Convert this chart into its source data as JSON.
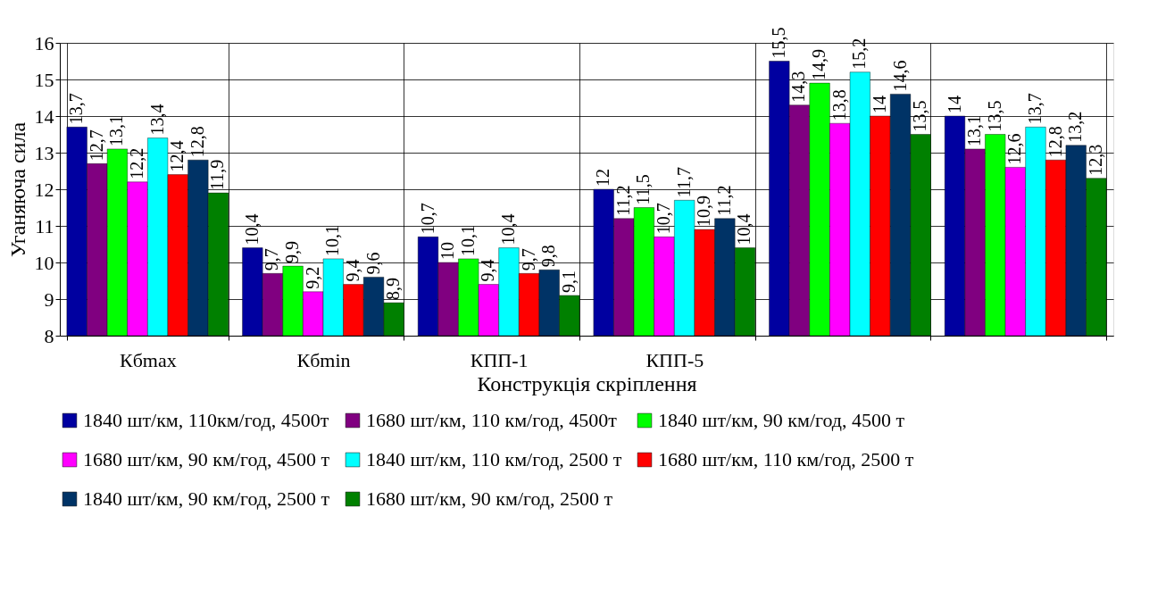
{
  "chart_data": {
    "type": "bar",
    "xlabel": "Конструкція скріплення",
    "ylabel": "Уганяюча сила",
    "categories": [
      "Кбmax",
      "Кбmin",
      "КПП-1",
      "КПП-5",
      null,
      null
    ],
    "ylim": [
      8,
      16
    ],
    "yticks": [
      8,
      9,
      10,
      11,
      12,
      13,
      14,
      15,
      16
    ],
    "grid": true,
    "legend": "bottom",
    "series": [
      {
        "name": "1840 шт/км, 110км/год, 4500т",
        "color": "#0000a0",
        "values": [
          13.7,
          10.4,
          10.7,
          12,
          15.5,
          14
        ],
        "value_labels": [
          "13,7",
          "10,4",
          "10,7",
          "12",
          "15,5",
          "14"
        ]
      },
      {
        "name": "1680 шт/км, 110 км/год, 4500т",
        "color": "#800080",
        "values": [
          12.7,
          9.7,
          10,
          11.2,
          14.3,
          13.1
        ],
        "value_labels": [
          "12,7",
          "9,7",
          "10",
          "11,2",
          "14,3",
          "13,1"
        ]
      },
      {
        "name": "1840 шт/км, 90 км/год, 4500 т",
        "color": "#00ff00",
        "values": [
          13.1,
          9.9,
          10.1,
          11.5,
          14.9,
          13.5
        ],
        "value_labels": [
          "13,1",
          "9,9",
          "10,1",
          "11,5",
          "14,9",
          "13,5"
        ]
      },
      {
        "name": "1680 шт/км, 90 км/год, 4500 т",
        "color": "#ff00ff",
        "values": [
          12.2,
          9.2,
          9.4,
          10.7,
          13.8,
          12.6
        ],
        "value_labels": [
          "12,2",
          "9,2",
          "9,4",
          "10,7",
          "13,8",
          "12,6"
        ]
      },
      {
        "name": "1840 шт/км, 110 км/год, 2500 т",
        "color": "#00ffff",
        "values": [
          13.4,
          10.1,
          10.4,
          11.7,
          15.2,
          13.7
        ],
        "value_labels": [
          "13,4",
          "10,1",
          "10,4",
          "11,7",
          "15,2",
          "13,7"
        ]
      },
      {
        "name": "1680 шт/км, 110 км/год, 2500 т",
        "color": "#ff0000",
        "values": [
          12.4,
          9.4,
          9.7,
          10.9,
          14,
          12.8
        ],
        "value_labels": [
          "12,4",
          "9,4",
          "9,7",
          "10,9",
          "14",
          "12,8"
        ]
      },
      {
        "name": "1840 шт/км, 90 км/год, 2500 т",
        "color": "#003366",
        "values": [
          12.8,
          9.6,
          9.8,
          11.2,
          14.6,
          13.2
        ],
        "value_labels": [
          "12,8",
          "9,6",
          "9,8",
          "11,2",
          "14,6",
          "13,2"
        ]
      },
      {
        "name": "1680 шт/км, 90 км/год, 2500 т",
        "color": "#008000",
        "values": [
          11.9,
          8.9,
          9.1,
          10.4,
          13.5,
          12.3
        ],
        "value_labels": [
          "11,9",
          "8,9",
          "9,1",
          "10,4",
          "13,5",
          "12,3"
        ]
      }
    ]
  }
}
